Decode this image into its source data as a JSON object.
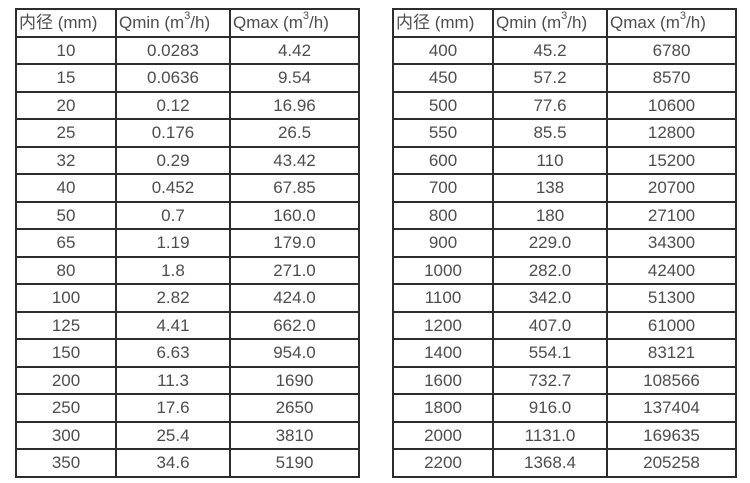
{
  "page": {
    "background": "#ffffff",
    "border_color": "#2d2d2d",
    "text_color": "#4d4d4d"
  },
  "header": {
    "diameter": "内径 (mm)",
    "qmin_prefix": "Qmin (m",
    "qmin_sup": "3",
    "qmin_suffix": "/h)",
    "qmax_prefix": "Qmax (m",
    "qmax_sup": "3",
    "qmax_suffix": "/h)"
  },
  "tables": [
    {
      "name": "small-diameters",
      "rows": [
        [
          "10",
          "0.0283",
          "4.42"
        ],
        [
          "15",
          "0.0636",
          "9.54"
        ],
        [
          "20",
          "0.12",
          "16.96"
        ],
        [
          "25",
          "0.176",
          "26.5"
        ],
        [
          "32",
          "0.29",
          "43.42"
        ],
        [
          "40",
          "0.452",
          "67.85"
        ],
        [
          "50",
          "0.7",
          "160.0"
        ],
        [
          "65",
          "1.19",
          "179.0"
        ],
        [
          "80",
          "1.8",
          "271.0"
        ],
        [
          "100",
          "2.82",
          "424.0"
        ],
        [
          "125",
          "4.41",
          "662.0"
        ],
        [
          "150",
          "6.63",
          "954.0"
        ],
        [
          "200",
          "11.3",
          "1690"
        ],
        [
          "250",
          "17.6",
          "2650"
        ],
        [
          "300",
          "25.4",
          "3810"
        ],
        [
          "350",
          "34.6",
          "5190"
        ]
      ]
    },
    {
      "name": "large-diameters",
      "rows": [
        [
          "400",
          "45.2",
          "6780"
        ],
        [
          "450",
          "57.2",
          "8570"
        ],
        [
          "500",
          "77.6",
          "10600"
        ],
        [
          "550",
          "85.5",
          "12800"
        ],
        [
          "600",
          "110",
          "15200"
        ],
        [
          "700",
          "138",
          "20700"
        ],
        [
          "800",
          "180",
          "27100"
        ],
        [
          "900",
          "229.0",
          "34300"
        ],
        [
          "1000",
          "282.0",
          "42400"
        ],
        [
          "1100",
          "342.0",
          "51300"
        ],
        [
          "1200",
          "407.0",
          "61000"
        ],
        [
          "1400",
          "554.1",
          "83121"
        ],
        [
          "1600",
          "732.7",
          "108566"
        ],
        [
          "1800",
          "916.0",
          "137404"
        ],
        [
          "2000",
          "1131.0",
          "169635"
        ],
        [
          "2200",
          "1368.4",
          "205258"
        ]
      ]
    }
  ]
}
